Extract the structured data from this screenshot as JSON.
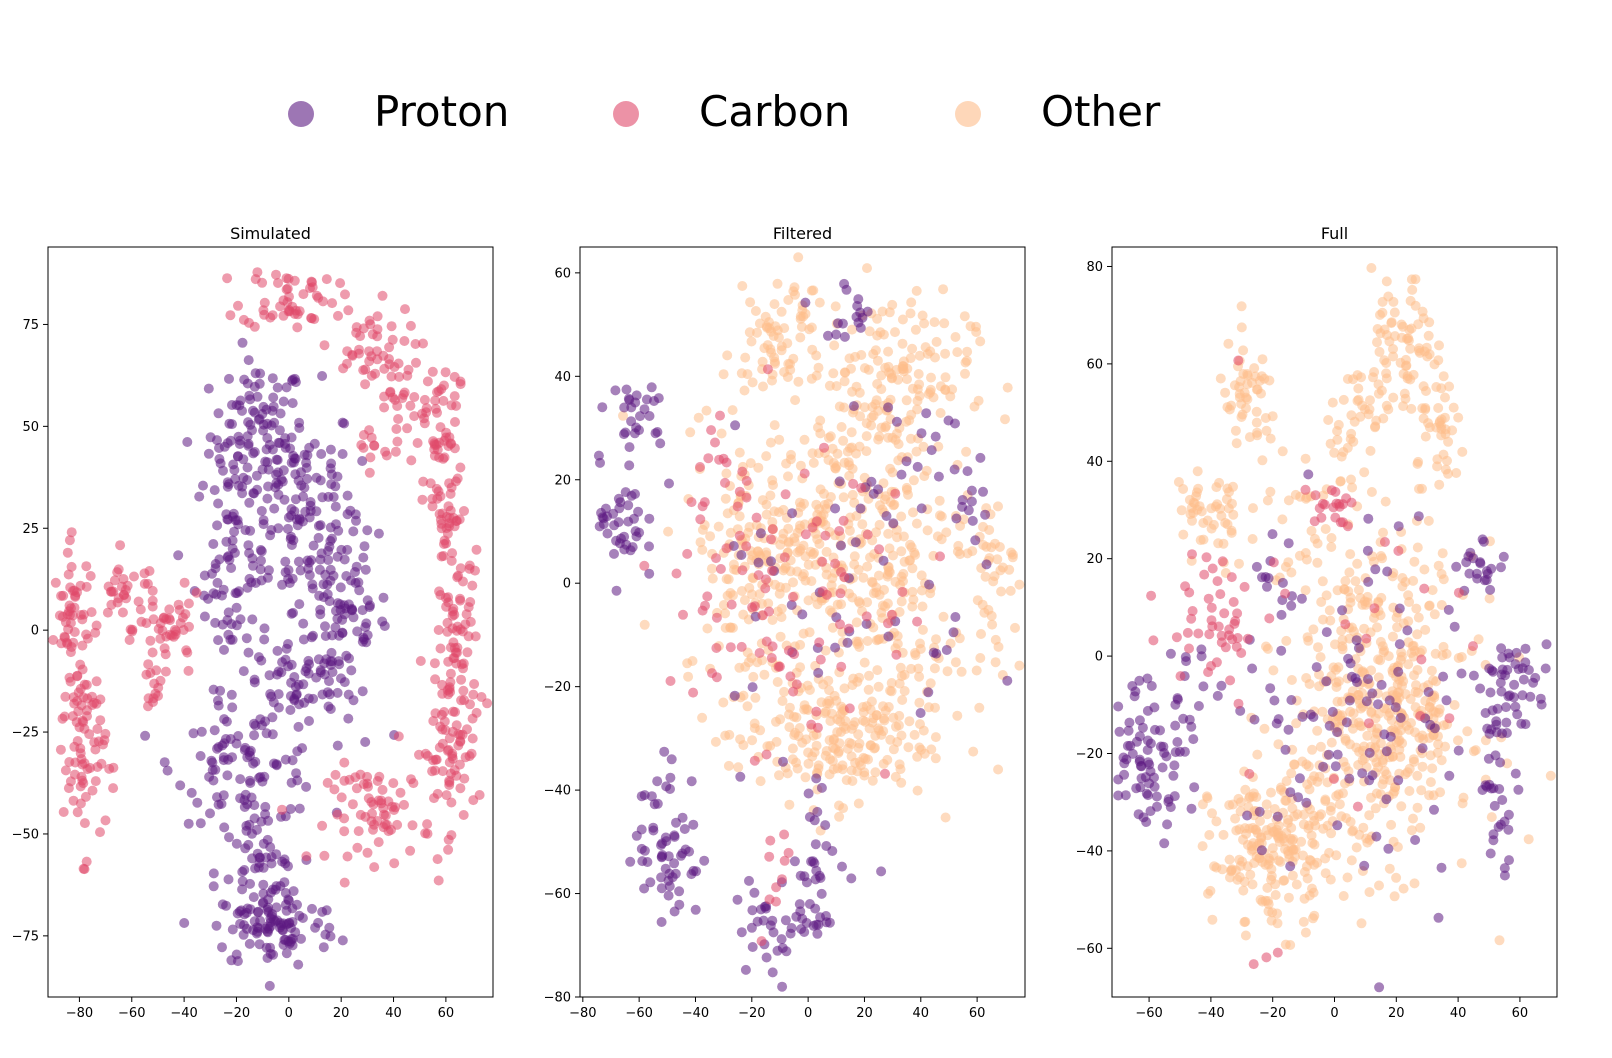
{
  "legend": {
    "entries": [
      {
        "label": "Proton",
        "color": "#5c1a82"
      },
      {
        "label": "Carbon",
        "color": "#e0496a"
      },
      {
        "label": "Other",
        "color": "#fdbd8a"
      }
    ]
  },
  "chart_data": [
    {
      "type": "scatter",
      "title": "Simulated",
      "xlabel": "",
      "ylabel": "",
      "xlim": [
        -92,
        78
      ],
      "ylim": [
        -90,
        94
      ],
      "xticks": [
        -80,
        -60,
        -40,
        -20,
        0,
        20,
        40,
        60
      ],
      "yticks": [
        -75,
        -50,
        -25,
        0,
        25,
        50,
        75
      ],
      "grid": false,
      "series": [
        {
          "legend_index": 0,
          "clusters": [
            {
              "cx": -12,
              "cy": 48,
              "sx": 9,
              "sy": 9,
              "n": 90
            },
            {
              "cx": 3,
              "cy": 30,
              "sx": 12,
              "sy": 14,
              "n": 130
            },
            {
              "cx": -22,
              "cy": 15,
              "sx": 7,
              "sy": 14,
              "n": 80
            },
            {
              "cx": 20,
              "cy": 5,
              "sx": 9,
              "sy": 12,
              "n": 90
            },
            {
              "cx": 5,
              "cy": -14,
              "sx": 12,
              "sy": 5,
              "n": 60
            },
            {
              "cx": -15,
              "cy": -33,
              "sx": 14,
              "sy": 7,
              "n": 90
            },
            {
              "cx": -12,
              "cy": -60,
              "sx": 8,
              "sy": 8,
              "n": 60
            },
            {
              "cx": -5,
              "cy": -73,
              "sx": 12,
              "sy": 5,
              "n": 90
            }
          ]
        },
        {
          "legend_index": 1,
          "clusters": [
            {
              "cx": 0,
              "cy": 82,
              "sx": 9,
              "sy": 4,
              "n": 50
            },
            {
              "cx": 30,
              "cy": 68,
              "sx": 9,
              "sy": 6,
              "n": 50
            },
            {
              "cx": 50,
              "cy": 55,
              "sx": 7,
              "sy": 6,
              "n": 40
            },
            {
              "cx": 60,
              "cy": 30,
              "sx": 4,
              "sy": 15,
              "n": 70
            },
            {
              "cx": 65,
              "cy": -5,
              "sx": 4,
              "sy": 12,
              "n": 70
            },
            {
              "cx": 60,
              "cy": -30,
              "sx": 6,
              "sy": 10,
              "n": 60
            },
            {
              "cx": 35,
              "cy": -45,
              "sx": 10,
              "sy": 6,
              "n": 70
            },
            {
              "cx": -82,
              "cy": 0,
              "sx": 4,
              "sy": 10,
              "n": 60
            },
            {
              "cx": -78,
              "cy": -30,
              "sx": 4,
              "sy": 12,
              "n": 70
            },
            {
              "cx": -62,
              "cy": 10,
              "sx": 6,
              "sy": 4,
              "n": 30
            },
            {
              "cx": -45,
              "cy": 0,
              "sx": 6,
              "sy": 4,
              "n": 40
            },
            {
              "cx": -52,
              "cy": -15,
              "sx": 3,
              "sy": 5,
              "n": 15
            },
            {
              "cx": 32,
              "cy": 45,
              "sx": 3,
              "sy": 3,
              "n": 12
            }
          ]
        }
      ]
    },
    {
      "type": "scatter",
      "title": "Filtered",
      "xlabel": "",
      "ylabel": "",
      "xlim": [
        -81,
        77
      ],
      "ylim": [
        -80,
        65
      ],
      "xticks": [
        -80,
        -60,
        -40,
        -20,
        0,
        20,
        40,
        60
      ],
      "yticks": [
        -80,
        -60,
        -40,
        -20,
        0,
        20,
        40,
        60
      ],
      "grid": false,
      "series": [
        {
          "legend_index": 2,
          "clusters": [
            {
              "cx": -13,
              "cy": 45,
              "sx": 7,
              "sy": 5,
              "n": 50
            },
            {
              "cx": 28,
              "cy": 40,
              "sx": 15,
              "sy": 8,
              "n": 160
            },
            {
              "cx": 15,
              "cy": 10,
              "sx": 22,
              "sy": 12,
              "n": 260
            },
            {
              "cx": -15,
              "cy": 5,
              "sx": 15,
              "sy": 13,
              "n": 160
            },
            {
              "cx": 65,
              "cy": 0,
              "sx": 4,
              "sy": 8,
              "n": 40
            },
            {
              "cx": 30,
              "cy": -12,
              "sx": 12,
              "sy": 8,
              "n": 80
            },
            {
              "cx": 8,
              "cy": -30,
              "sx": 18,
              "sy": 6,
              "n": 200
            },
            {
              "cx": -5,
              "cy": 55,
              "sx": 4,
              "sy": 3,
              "n": 15
            }
          ]
        },
        {
          "legend_index": 0,
          "clusters": [
            {
              "cx": -62,
              "cy": 32,
              "sx": 6,
              "sy": 3,
              "n": 25
            },
            {
              "cx": -66,
              "cy": 12,
              "sx": 4,
              "sy": 6,
              "n": 40
            },
            {
              "cx": -50,
              "cy": -50,
              "sx": 6,
              "sy": 8,
              "n": 60
            },
            {
              "cx": -10,
              "cy": -65,
              "sx": 8,
              "sy": 5,
              "n": 40
            },
            {
              "cx": 5,
              "cy": -55,
              "sx": 4,
              "sy": 8,
              "n": 30
            },
            {
              "cx": 15,
              "cy": 53,
              "sx": 5,
              "sy": 3,
              "n": 15
            },
            {
              "cx": 58,
              "cy": 15,
              "sx": 3,
              "sy": 5,
              "n": 12
            },
            {
              "cx": 10,
              "cy": 5,
              "sx": 25,
              "sy": 20,
              "n": 60
            },
            {
              "cx": 40,
              "cy": 28,
              "sx": 4,
              "sy": 4,
              "n": 8
            }
          ]
        },
        {
          "legend_index": 1,
          "clusters": [
            {
              "cx": -15,
              "cy": -5,
              "sx": 18,
              "sy": 15,
              "n": 70
            },
            {
              "cx": -30,
              "cy": 20,
              "sx": 6,
              "sy": 6,
              "n": 15
            },
            {
              "cx": -12,
              "cy": -55,
              "sx": 4,
              "sy": 6,
              "n": 10
            },
            {
              "cx": 15,
              "cy": 10,
              "sx": 20,
              "sy": 15,
              "n": 20
            }
          ]
        }
      ]
    },
    {
      "type": "scatter",
      "title": "Full",
      "xlabel": "",
      "ylabel": "",
      "xlim": [
        -72,
        72
      ],
      "ylim": [
        -70,
        84
      ],
      "xticks": [
        -60,
        -40,
        -20,
        0,
        20,
        40,
        60
      ],
      "yticks": [
        -60,
        -40,
        -20,
        0,
        20,
        40,
        60,
        80
      ],
      "grid": false,
      "series": [
        {
          "legend_index": 2,
          "clusters": [
            {
              "cx": 22,
              "cy": 62,
              "sx": 5,
              "sy": 8,
              "n": 70
            },
            {
              "cx": 10,
              "cy": 50,
              "sx": 6,
              "sy": 6,
              "n": 40
            },
            {
              "cx": 35,
              "cy": 45,
              "sx": 4,
              "sy": 6,
              "n": 40
            },
            {
              "cx": -28,
              "cy": 52,
              "sx": 5,
              "sy": 6,
              "n": 50
            },
            {
              "cx": -40,
              "cy": 28,
              "sx": 6,
              "sy": 6,
              "n": 50
            },
            {
              "cx": 15,
              "cy": -10,
              "sx": 15,
              "sy": 16,
              "n": 450
            },
            {
              "cx": -20,
              "cy": -40,
              "sx": 10,
              "sy": 8,
              "n": 200
            },
            {
              "cx": -5,
              "cy": 25,
              "sx": 10,
              "sy": 10,
              "n": 40
            }
          ]
        },
        {
          "legend_index": 0,
          "clusters": [
            {
              "cx": -60,
              "cy": -20,
              "sx": 6,
              "sy": 8,
              "n": 70
            },
            {
              "cx": -45,
              "cy": -10,
              "sx": 5,
              "sy": 8,
              "n": 20
            },
            {
              "cx": 58,
              "cy": -5,
              "sx": 6,
              "sy": 4,
              "n": 40
            },
            {
              "cx": 53,
              "cy": -25,
              "sx": 3,
              "sy": 8,
              "n": 30
            },
            {
              "cx": 48,
              "cy": 18,
              "sx": 4,
              "sy": 3,
              "n": 20
            },
            {
              "cx": 10,
              "cy": -10,
              "sx": 22,
              "sy": 20,
              "n": 110
            },
            {
              "cx": -22,
              "cy": 18,
              "sx": 4,
              "sy": 5,
              "n": 8
            }
          ]
        },
        {
          "legend_index": 1,
          "clusters": [
            {
              "cx": -40,
              "cy": 10,
              "sx": 8,
              "sy": 8,
              "n": 30
            },
            {
              "cx": -2,
              "cy": 31,
              "sx": 4,
              "sy": 2,
              "n": 20
            },
            {
              "cx": -35,
              "cy": 5,
              "sx": 5,
              "sy": 2,
              "n": 15
            },
            {
              "cx": -22,
              "cy": -61,
              "sx": 2,
              "sy": 2,
              "n": 3
            },
            {
              "cx": 0,
              "cy": 0,
              "sx": 25,
              "sy": 20,
              "n": 20
            }
          ]
        }
      ]
    }
  ]
}
